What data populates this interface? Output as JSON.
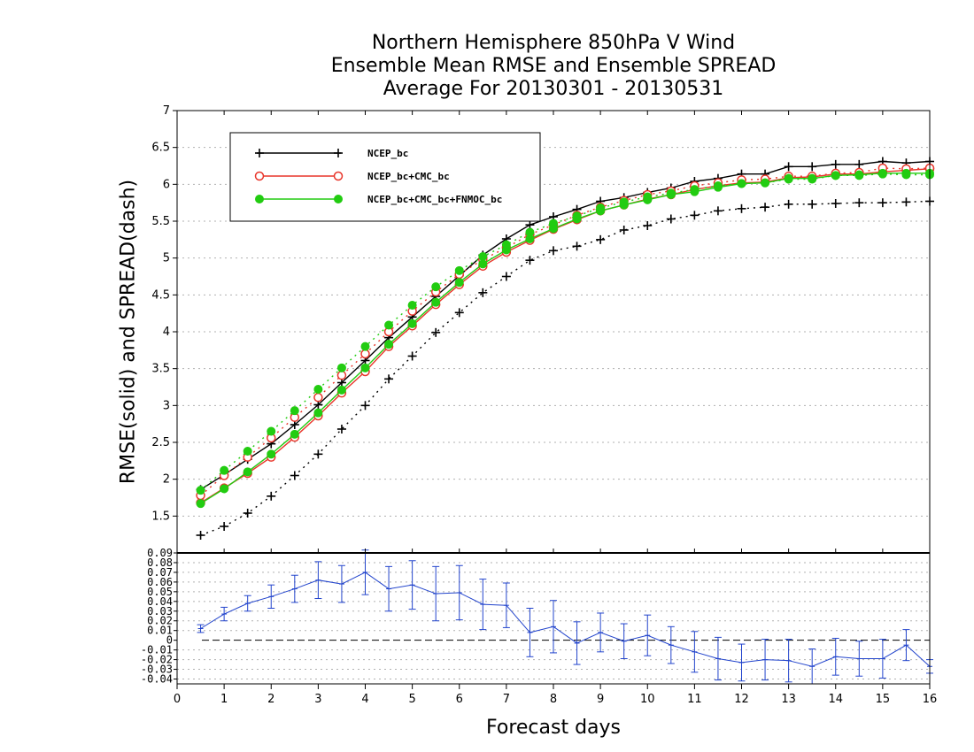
{
  "chart_data": [
    {
      "type": "line",
      "title": [
        "Northern Hemisphere 850hPa V Wind",
        "Ensemble Mean RMSE and Ensemble SPREAD",
        "Average For 20130301 - 20130531"
      ],
      "ylabel": "RMSE(solid) and SPREAD(dash)",
      "xlim": [
        0,
        16
      ],
      "ylim": [
        1,
        7
      ],
      "yticks": [
        "1.5",
        "2",
        "2.5",
        "3",
        "3.5",
        "4",
        "4.5",
        "5",
        "5.5",
        "6",
        "6.5",
        "7"
      ],
      "grid": true,
      "legend_position": "top-left",
      "x": [
        0.5,
        1,
        1.5,
        2,
        2.5,
        3,
        3.5,
        4,
        4.5,
        5,
        5.5,
        6,
        6.5,
        7,
        7.5,
        8,
        8.5,
        9,
        9.5,
        10,
        10.5,
        11,
        11.5,
        12,
        12.5,
        13,
        13.5,
        14,
        14.5,
        15,
        15.5,
        16
      ],
      "series": [
        {
          "name": "NCEP_bc",
          "color": "#000000",
          "marker": "plus",
          "rmse": [
            1.86,
            2.06,
            2.27,
            2.48,
            2.74,
            3.01,
            3.31,
            3.61,
            3.92,
            4.2,
            4.48,
            4.76,
            5.04,
            5.26,
            5.45,
            5.56,
            5.66,
            5.77,
            5.82,
            5.89,
            5.95,
            6.04,
            6.08,
            6.14,
            6.14,
            6.24,
            6.24,
            6.27,
            6.27,
            6.31,
            6.29,
            6.31
          ],
          "spread": [
            1.24,
            1.36,
            1.54,
            1.77,
            2.05,
            2.34,
            2.68,
            3.0,
            3.36,
            3.67,
            3.99,
            4.26,
            4.53,
            4.75,
            4.97,
            5.1,
            5.16,
            5.25,
            5.38,
            5.44,
            5.53,
            5.58,
            5.64,
            5.67,
            5.69,
            5.73,
            5.73,
            5.74,
            5.75,
            5.75,
            5.76,
            5.77
          ]
        },
        {
          "name": "NCEP_bc+CMC_bc",
          "color": "#e8352a",
          "marker": "circle-open",
          "rmse": [
            1.68,
            1.88,
            2.08,
            2.3,
            2.57,
            2.86,
            3.17,
            3.46,
            3.8,
            4.08,
            4.37,
            4.64,
            4.89,
            5.08,
            5.24,
            5.39,
            5.52,
            5.64,
            5.72,
            5.8,
            5.86,
            5.93,
            5.98,
            6.02,
            6.03,
            6.09,
            6.1,
            6.14,
            6.14,
            6.17,
            6.19,
            6.21
          ],
          "spread": [
            1.78,
            2.05,
            2.3,
            2.56,
            2.84,
            3.11,
            3.41,
            3.7,
            4.0,
            4.28,
            4.54,
            4.78,
            4.98,
            5.14,
            5.32,
            5.45,
            5.58,
            5.69,
            5.78,
            5.86,
            5.91,
            5.98,
            6.02,
            6.06,
            6.07,
            6.11,
            6.11,
            6.15,
            6.16,
            6.22,
            6.21,
            6.22
          ]
        },
        {
          "name": "NCEP_bc+CMC_bc+FNMOC_bc",
          "color": "#22cc11",
          "marker": "circle-filled",
          "rmse": [
            1.67,
            1.87,
            2.1,
            2.34,
            2.61,
            2.9,
            3.21,
            3.51,
            3.83,
            4.11,
            4.4,
            4.67,
            4.92,
            5.11,
            5.26,
            5.4,
            5.53,
            5.64,
            5.72,
            5.79,
            5.86,
            5.9,
            5.96,
            6.01,
            6.02,
            6.08,
            6.08,
            6.12,
            6.13,
            6.15,
            6.15,
            6.15
          ],
          "spread": [
            1.85,
            2.12,
            2.38,
            2.65,
            2.93,
            3.22,
            3.51,
            3.8,
            4.09,
            4.36,
            4.61,
            4.83,
            5.02,
            5.18,
            5.35,
            5.47,
            5.57,
            5.68,
            5.76,
            5.83,
            5.88,
            5.93,
            5.98,
            6.01,
            6.02,
            6.07,
            6.07,
            6.12,
            6.12,
            6.14,
            6.13,
            6.13
          ]
        }
      ]
    },
    {
      "type": "line",
      "xlabel": "Forecast days",
      "xlim": [
        0,
        16
      ],
      "ylim": [
        -0.045,
        0.09
      ],
      "xticks": [
        "0",
        "1",
        "2",
        "3",
        "4",
        "5",
        "6",
        "7",
        "8",
        "9",
        "10",
        "11",
        "12",
        "13",
        "14",
        "15",
        "16"
      ],
      "yticks": [
        "-0.04",
        "-0.03",
        "-0.02",
        "-0.01",
        "0",
        "0.01",
        "0.02",
        "0.03",
        "0.04",
        "0.05",
        "0.06",
        "0.07",
        "0.08",
        "0.09"
      ],
      "grid": true,
      "zero_line": true,
      "series": [
        {
          "color": "#2244cc",
          "marker": "error-bar",
          "x": [
            0.5,
            1,
            1.5,
            2,
            2.5,
            3,
            3.5,
            4,
            4.5,
            5,
            5.5,
            6,
            6.5,
            7,
            7.5,
            8,
            8.5,
            9,
            9.5,
            10,
            10.5,
            11,
            11.5,
            12,
            12.5,
            13,
            13.5,
            14,
            14.5,
            15,
            15.5,
            16
          ],
          "values": [
            0.012,
            0.027,
            0.038,
            0.045,
            0.053,
            0.062,
            0.058,
            0.07,
            0.053,
            0.057,
            0.048,
            0.049,
            0.037,
            0.036,
            0.008,
            0.014,
            -0.003,
            0.008,
            -0.001,
            0.005,
            -0.005,
            -0.012,
            -0.019,
            -0.023,
            -0.02,
            -0.021,
            -0.027,
            -0.017,
            -0.019,
            -0.019,
            -0.005,
            -0.027
          ],
          "err": [
            0.004,
            0.007,
            0.008,
            0.012,
            0.014,
            0.019,
            0.019,
            0.023,
            0.023,
            0.025,
            0.028,
            0.028,
            0.026,
            0.023,
            0.025,
            0.027,
            0.022,
            0.02,
            0.018,
            0.021,
            0.019,
            0.021,
            0.022,
            0.019,
            0.021,
            0.022,
            0.018,
            0.019,
            0.018,
            0.02,
            0.016,
            0.007
          ]
        }
      ]
    }
  ]
}
